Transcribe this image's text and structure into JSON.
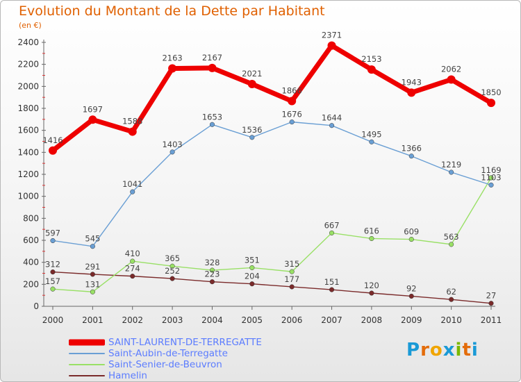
{
  "header": {
    "title": "Evolution du Montant de la Dette par Habitant",
    "subtitle": "(en €)"
  },
  "chart_data": {
    "type": "line",
    "x": [
      "2000",
      "2001",
      "2002",
      "2003",
      "2004",
      "2005",
      "2006",
      "2007",
      "2008",
      "2009",
      "2010",
      "2011"
    ],
    "ylim": [
      0,
      2400
    ],
    "yticks": [
      0,
      200,
      400,
      600,
      800,
      1000,
      1200,
      1400,
      1600,
      1800,
      2000,
      2200,
      2400
    ],
    "grid": false,
    "legend_position": "bottom",
    "series": [
      {
        "name": "SAINT-LAURENT-DE-TERREGATTE",
        "color": "#ee0000",
        "values": [
          1416,
          1697,
          1588,
          2163,
          2167,
          2021,
          1866,
          2371,
          2153,
          1943,
          2062,
          1850
        ]
      },
      {
        "name": "Saint-Aubin-de-Terregatte",
        "color": "#6a9fd4",
        "values": [
          597,
          545,
          1041,
          1403,
          1653,
          1536,
          1676,
          1644,
          1495,
          1366,
          1219,
          1103
        ]
      },
      {
        "name": "Saint-Senier-de-Beuvron",
        "color": "#99e066",
        "values": [
          157,
          131,
          410,
          365,
          328,
          351,
          315,
          667,
          616,
          609,
          563,
          1169
        ]
      },
      {
        "name": "Hamelin",
        "color": "#7a2a2a",
        "values": [
          312,
          291,
          274,
          252,
          223,
          204,
          177,
          151,
          120,
          92,
          62,
          27
        ]
      }
    ]
  },
  "brand": {
    "letters": [
      "P",
      "r",
      "o",
      "x",
      "i",
      "t",
      "i"
    ],
    "colors": [
      "#1a9ad6",
      "#e36c0a",
      "#f0a500",
      "#1a9ad6",
      "#7ab800",
      "#e36c0a",
      "#1a9ad6"
    ]
  }
}
